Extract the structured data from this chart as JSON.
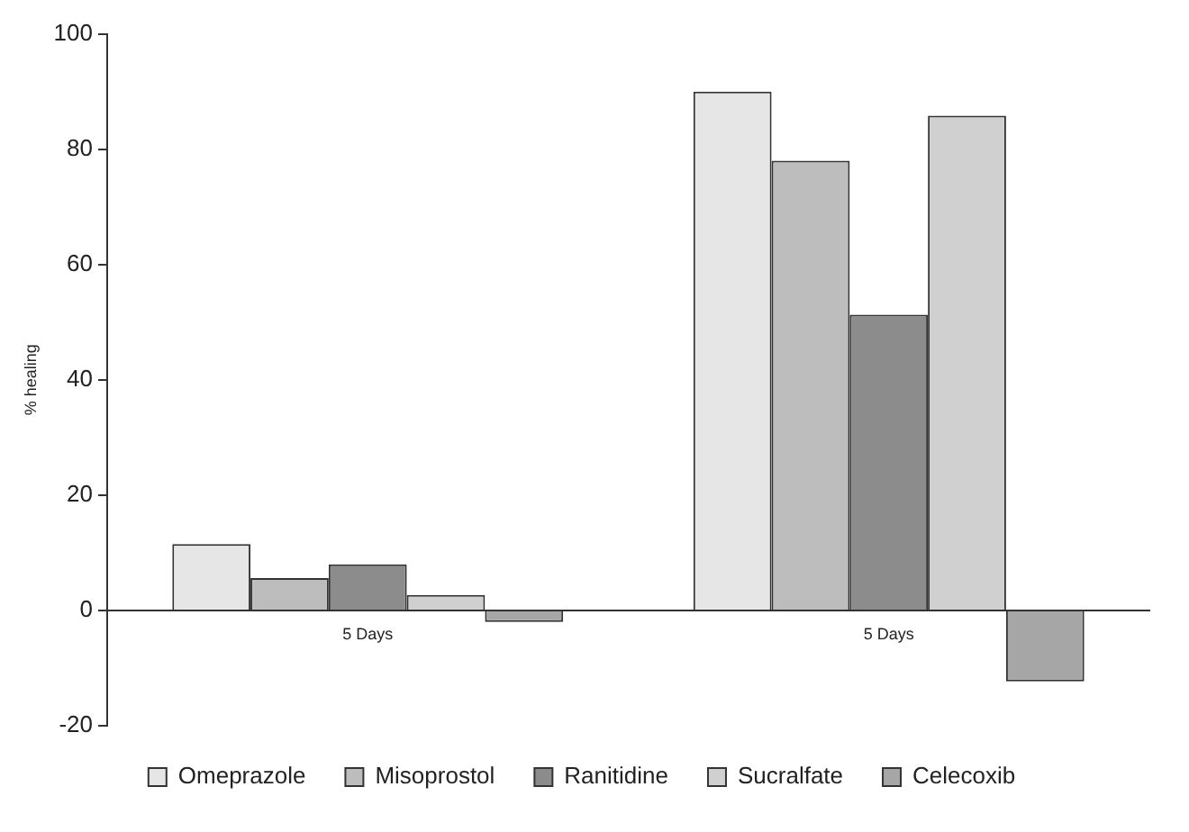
{
  "chart_data": {
    "type": "bar",
    "ylabel": "% healing",
    "categories": [
      "5 Days",
      "5 Days"
    ],
    "series": [
      {
        "name": "Omeprazole",
        "color": "#e6e6e6",
        "values": [
          11.5,
          90
        ]
      },
      {
        "name": "Misoprostol",
        "color": "#bdbdbd",
        "values": [
          5.6,
          78
        ]
      },
      {
        "name": "Ranitidine",
        "color": "#8c8c8c",
        "values": [
          8,
          51.3
        ]
      },
      {
        "name": "Sucralfate",
        "color": "#d0d0d0",
        "values": [
          2.7,
          85.8
        ]
      },
      {
        "name": "Celecoxib",
        "color": "#a6a6a6",
        "values": [
          -2,
          -12.3
        ]
      }
    ],
    "ylim": [
      -20,
      100
    ],
    "yticks": [
      -20,
      0,
      20,
      40,
      60,
      80,
      100
    ],
    "legend": "bottom"
  }
}
